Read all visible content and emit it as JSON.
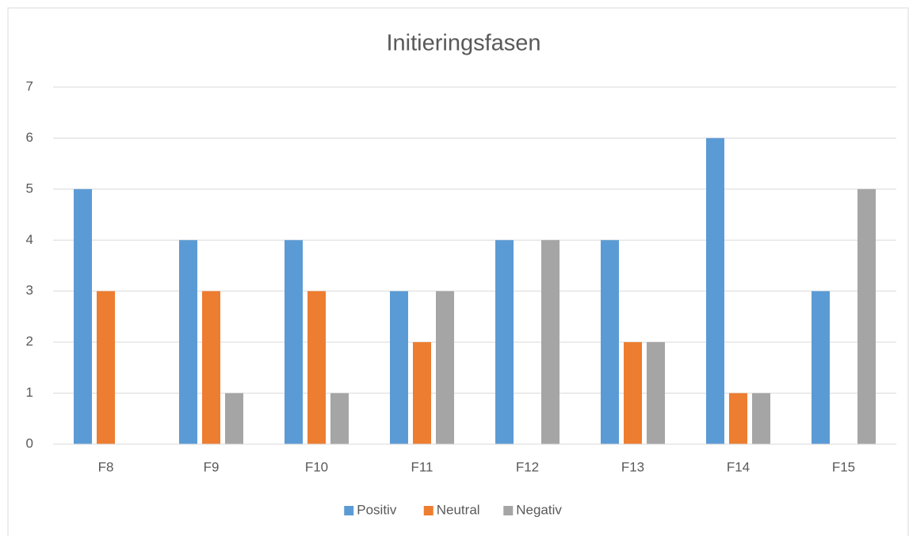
{
  "chart_data": {
    "type": "bar",
    "title": "Initieringsfasen",
    "categories": [
      "F8",
      "F9",
      "F10",
      "F11",
      "F12",
      "F13",
      "F14",
      "F15"
    ],
    "series": [
      {
        "name": "Positiv",
        "color": "#5b9bd5",
        "values": [
          5,
          4,
          4,
          3,
          4,
          4,
          6,
          3
        ]
      },
      {
        "name": "Neutral",
        "color": "#ed7d31",
        "values": [
          3,
          3,
          3,
          2,
          0,
          2,
          1,
          0
        ]
      },
      {
        "name": "Negativ",
        "color": "#a5a5a5",
        "values": [
          0,
          1,
          1,
          3,
          4,
          2,
          1,
          5
        ]
      }
    ],
    "ylim": [
      0,
      7
    ],
    "yticks": [
      0,
      1,
      2,
      3,
      4,
      5,
      6,
      7
    ],
    "grid": true,
    "legend": "bottom"
  }
}
